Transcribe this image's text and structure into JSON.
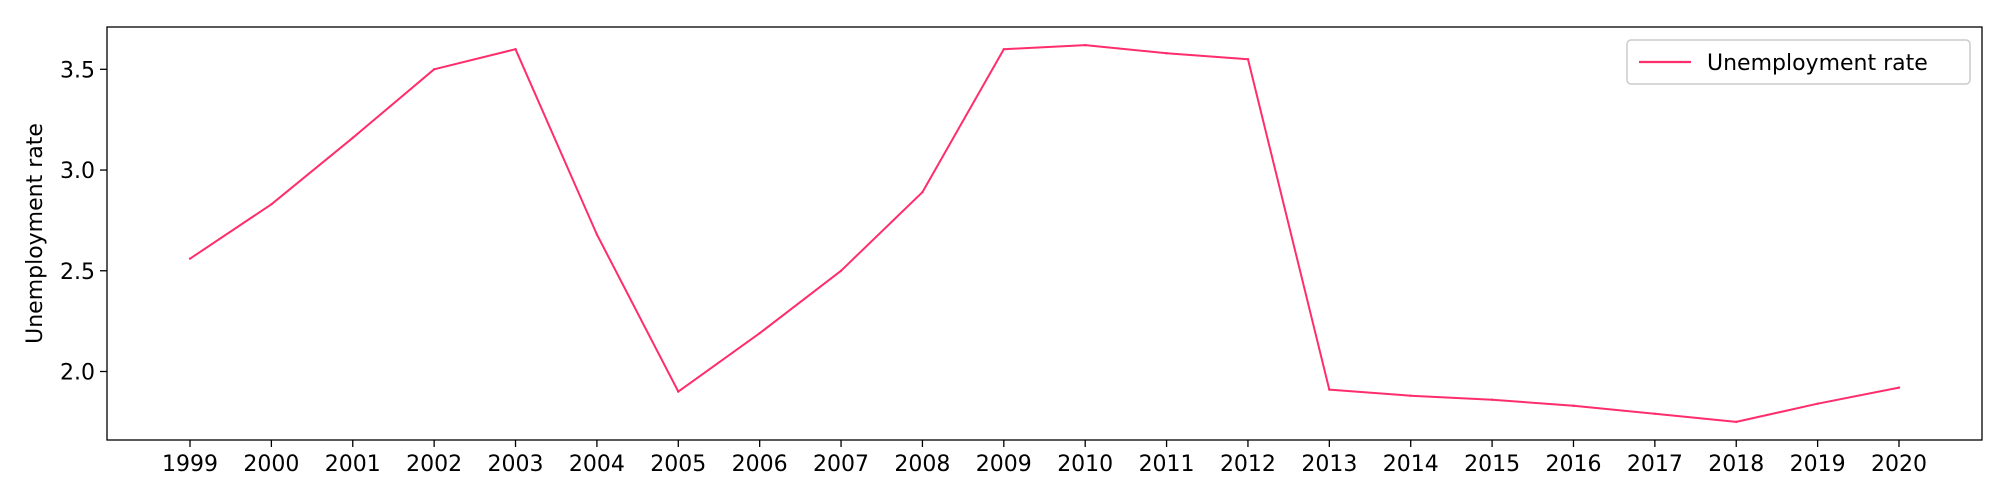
{
  "chart_data": {
    "type": "line",
    "title": "",
    "xlabel": "",
    "ylabel": "Unemployment rate",
    "x": [
      "1999",
      "2000",
      "2001",
      "2002",
      "2003",
      "2004",
      "2005",
      "2006",
      "2007",
      "2008",
      "2009",
      "2010",
      "2011",
      "2012",
      "2013",
      "2014",
      "2015",
      "2016",
      "2017",
      "2018",
      "2019",
      "2020"
    ],
    "series": [
      {
        "name": "Unemployment rate",
        "color": "#ff2d6b",
        "values": [
          2.56,
          2.83,
          3.16,
          3.5,
          3.6,
          2.68,
          1.9,
          2.19,
          2.5,
          2.89,
          3.6,
          3.62,
          3.58,
          3.55,
          1.91,
          1.88,
          1.86,
          1.83,
          1.79,
          1.75,
          1.84,
          1.92
        ]
      }
    ],
    "yticks": [
      2.0,
      2.5,
      3.0,
      3.5
    ],
    "ytick_labels": [
      "2.0",
      "2.5",
      "3.0",
      "3.5"
    ],
    "ylim": [
      1.66,
      3.71
    ],
    "grid": false,
    "legend": {
      "position": "top-right"
    }
  }
}
